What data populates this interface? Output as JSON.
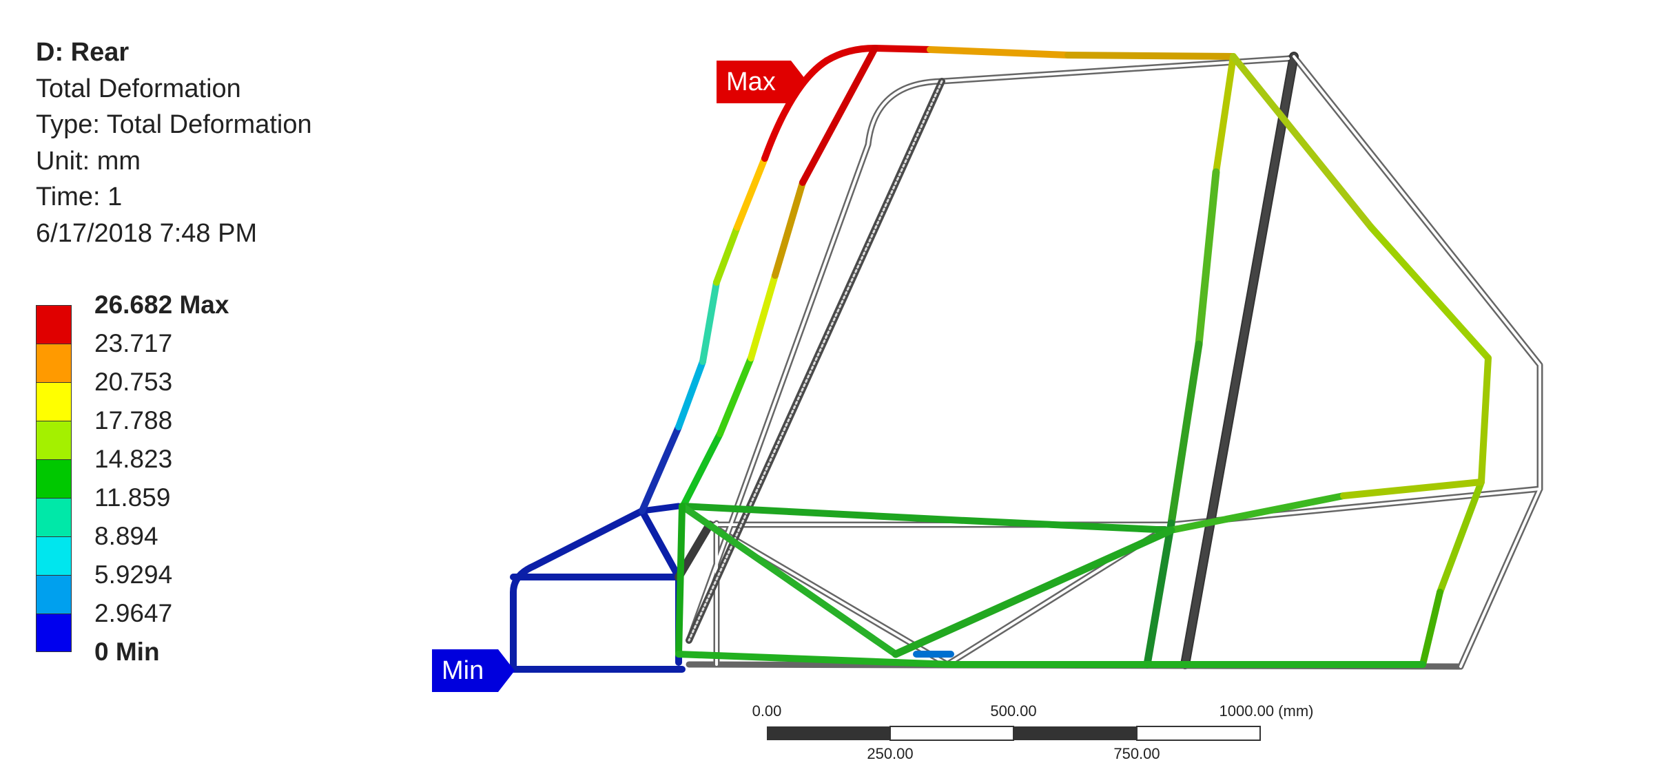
{
  "info": {
    "title": "D: Rear",
    "result": "Total Deformation",
    "type": "Type: Total Deformation",
    "unit": "Unit: mm",
    "time": "Time: 1",
    "date": "6/17/2018 7:48 PM"
  },
  "legend": {
    "levels": [
      {
        "label": "26.682 Max",
        "bold": true
      },
      {
        "label": "23.717"
      },
      {
        "label": "20.753"
      },
      {
        "label": "17.788"
      },
      {
        "label": "14.823"
      },
      {
        "label": "11.859"
      },
      {
        "label": "8.894"
      },
      {
        "label": "5.9294"
      },
      {
        "label": "2.9647"
      },
      {
        "label": "0 Min",
        "bold": true
      }
    ],
    "colors": [
      "#e00000",
      "#ff9a00",
      "#ffff00",
      "#a4f000",
      "#00c800",
      "#00e8a8",
      "#00e6ee",
      "#00a0ee",
      "#0000ee"
    ]
  },
  "probes": {
    "max_label": "Max",
    "min_label": "Min",
    "max_color": "#e00000",
    "min_color": "#0000dd"
  },
  "scale": {
    "ticks_top": [
      "0.00",
      "500.00",
      "1000.00 (mm)"
    ],
    "ticks_bottom": [
      "250.00",
      "750.00"
    ]
  }
}
